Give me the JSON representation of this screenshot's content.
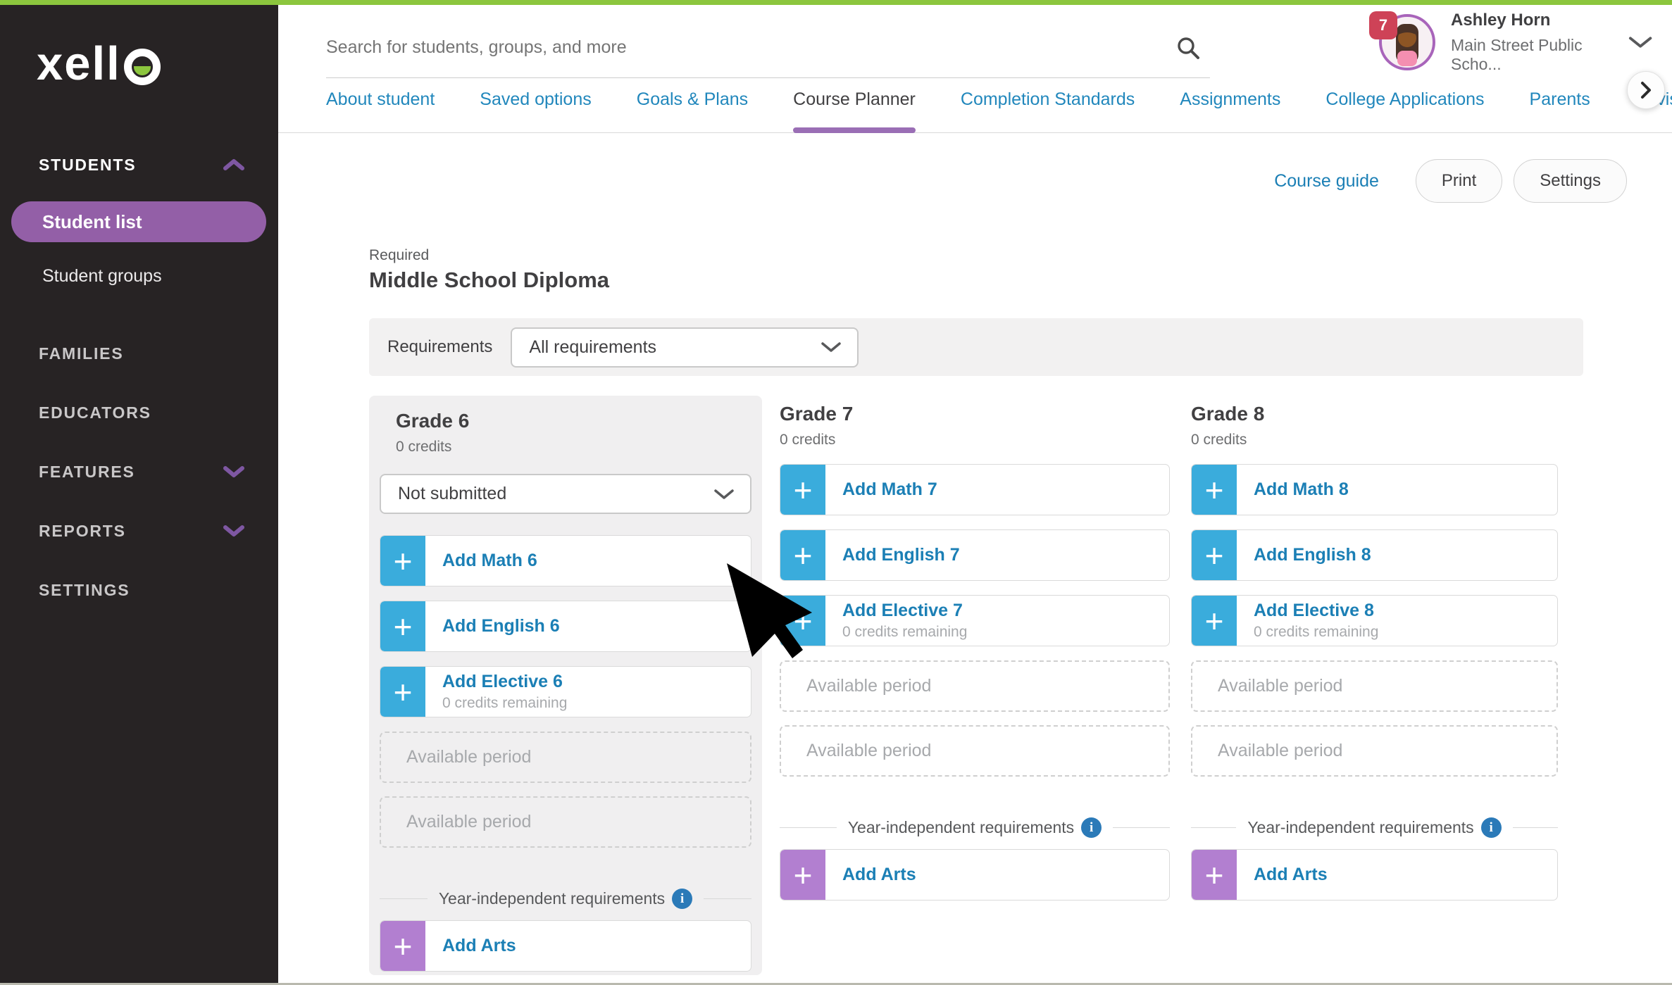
{
  "colors": {
    "green": "#8cc63e",
    "sidebarBg": "#272324",
    "accentPurple": "#9a6eb5",
    "pillPurple": "#935fa7",
    "blue": "#3aacdc",
    "artsPurple": "#b27fd0",
    "linkBlue": "#1b7fb5",
    "tabBlue": "#2187bc",
    "badgeRed": "#ce4257"
  },
  "brand": {
    "logo_text": "xello",
    "logo_prefix": "xell"
  },
  "sidebar": {
    "items": [
      {
        "label": "STUDENTS"
      },
      {
        "label": "Student list",
        "active": true
      },
      {
        "label": "Student groups"
      },
      {
        "label": "FAMILIES"
      },
      {
        "label": "EDUCATORS"
      },
      {
        "label": "FEATURES"
      },
      {
        "label": "REPORTS"
      },
      {
        "label": "SETTINGS"
      }
    ]
  },
  "topbar": {
    "search_placeholder": "Search for students, groups, and more",
    "notification_count": "7",
    "user_name": "Ashley Horn",
    "user_org": "Main Street Public Scho..."
  },
  "tabs": [
    {
      "label": "About student"
    },
    {
      "label": "Saved options"
    },
    {
      "label": "Goals & Plans"
    },
    {
      "label": "Course Planner",
      "active": true
    },
    {
      "label": "Completion Standards"
    },
    {
      "label": "Assignments"
    },
    {
      "label": "College Applications"
    },
    {
      "label": "Parents"
    },
    {
      "label": "Advis"
    }
  ],
  "toolbar": {
    "course_guide_label": "Course guide",
    "print_label": "Print",
    "settings_label": "Settings"
  },
  "plan": {
    "required_label": "Required",
    "title": "Middle School Diploma",
    "requirements_label": "Requirements",
    "requirements_value": "All requirements"
  },
  "grades": [
    {
      "title": "Grade 6",
      "credits": "0 credits",
      "status": "Not submitted",
      "highlighted": true,
      "courses": [
        {
          "label": "Add Math 6"
        },
        {
          "label": "Add English 6"
        },
        {
          "label": "Add Elective 6",
          "sub": "0 credits remaining"
        }
      ],
      "available_periods": [
        "Available period",
        "Available period"
      ],
      "year_independent_label": "Year-independent requirements",
      "arts_label": "Add Arts"
    },
    {
      "title": "Grade 7",
      "credits": "0 credits",
      "courses": [
        {
          "label": "Add Math 7"
        },
        {
          "label": "Add English 7"
        },
        {
          "label": "Add Elective 7",
          "sub": "0 credits remaining"
        }
      ],
      "available_periods": [
        "Available period",
        "Available period"
      ],
      "year_independent_label": "Year-independent requirements",
      "arts_label": "Add Arts"
    },
    {
      "title": "Grade 8",
      "credits": "0 credits",
      "courses": [
        {
          "label": "Add Math 8"
        },
        {
          "label": "Add English 8"
        },
        {
          "label": "Add Elective 8",
          "sub": "0 credits remaining"
        }
      ],
      "available_periods": [
        "Available period",
        "Available period"
      ],
      "year_independent_label": "Year-independent requirements",
      "arts_label": "Add Arts"
    }
  ]
}
